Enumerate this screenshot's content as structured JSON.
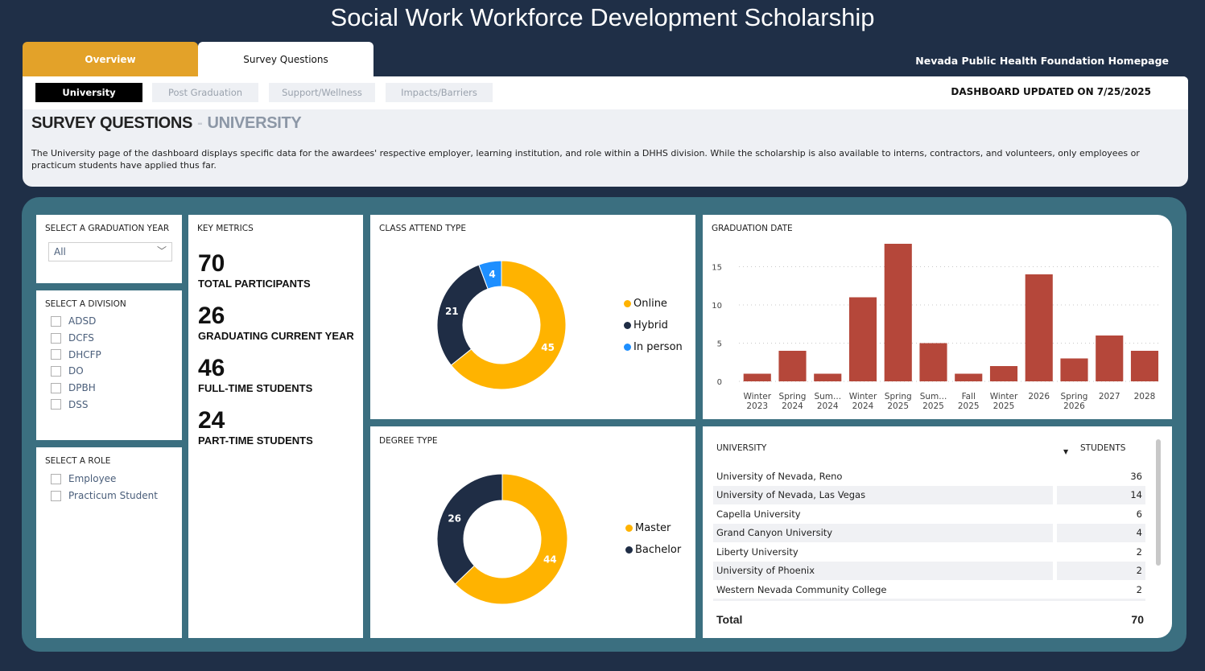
{
  "title": "Social Work Workforce Development Scholarship",
  "tabs": [
    {
      "label": "Overview",
      "active": false
    },
    {
      "label": "Survey Questions",
      "active": true
    }
  ],
  "homepage_link": "Nevada Public Health Foundation Homepage",
  "subtabs": [
    "University",
    "Post Graduation",
    "Support/Wellness",
    "Impacts/Barriers"
  ],
  "updated": "DASHBOARD UPDATED ON 7/25/2025",
  "page_title": {
    "main": "SURVEY QUESTIONS",
    "sep": "-",
    "section": "UNIVERSITY"
  },
  "description": "The University page of the dashboard displays specific data for the awardees' respective employer, learning institution, and role within a DHHS division. While the scholarship is also available to interns, contractors, and volunteers, only employees or practicum students have applied thus far.",
  "filters": {
    "year": {
      "title": "SELECT A GRADUATION YEAR",
      "value": "All"
    },
    "division": {
      "title": "SELECT A DIVISION",
      "options": [
        "ADSD",
        "DCFS",
        "DHCFP",
        "DO",
        "DPBH",
        "DSS"
      ]
    },
    "role": {
      "title": "SELECT A ROLE",
      "options": [
        "Employee",
        "Practicum Student"
      ]
    }
  },
  "key_metrics": {
    "title": "KEY METRICS",
    "items": [
      {
        "value": "70",
        "label": "TOTAL PARTICIPANTS"
      },
      {
        "value": "26",
        "label": "GRADUATING CURRENT YEAR"
      },
      {
        "value": "46",
        "label": "FULL-TIME STUDENTS"
      },
      {
        "value": "24",
        "label": "PART-TIME STUDENTS"
      }
    ]
  },
  "colors": {
    "yellow": "#ffb300",
    "navy": "#1f2d45",
    "blue": "#1e8fff",
    "bar": "#b5473a"
  },
  "chart_data": [
    {
      "type": "pie",
      "title": "CLASS ATTEND TYPE",
      "donut": true,
      "legend": "right",
      "categories": [
        "Online",
        "Hybrid",
        "In person"
      ],
      "values": [
        45,
        21,
        4
      ],
      "colors": [
        "#ffb300",
        "#1f2d45",
        "#1e8fff"
      ]
    },
    {
      "type": "pie",
      "title": "DEGREE TYPE",
      "donut": true,
      "legend": "right",
      "categories": [
        "Master",
        "Bachelor"
      ],
      "values": [
        44,
        26
      ],
      "colors": [
        "#ffb300",
        "#1f2d45"
      ]
    },
    {
      "type": "bar",
      "title": "GRADUATION DATE",
      "categories": [
        "Winter 2023",
        "Spring 2024",
        "Sum... 2024",
        "Winter 2024",
        "Spring 2025",
        "Sum... 2025",
        "Fall 2025",
        "Winter 2025",
        "2026",
        "Spring 2026",
        "2027",
        "2028"
      ],
      "values": [
        1,
        4,
        1,
        11,
        18,
        5,
        1,
        2,
        14,
        3,
        6,
        4
      ],
      "yticks": [
        0,
        5,
        10,
        15
      ],
      "ylim": [
        0,
        18
      ],
      "grid": true,
      "color": "#b5473a"
    }
  ],
  "university_table": {
    "headers": [
      "UNIVERSITY",
      "STUDENTS"
    ],
    "rows": [
      [
        "University of Nevada, Reno",
        "36"
      ],
      [
        "University of Nevada, Las Vegas",
        "14"
      ],
      [
        "Capella University",
        "6"
      ],
      [
        "Grand Canyon University",
        "4"
      ],
      [
        "Liberty University",
        "2"
      ],
      [
        "University of Phoenix",
        "2"
      ],
      [
        "Western Nevada Community College",
        "2"
      ]
    ],
    "total_label": "Total",
    "total": "70"
  }
}
